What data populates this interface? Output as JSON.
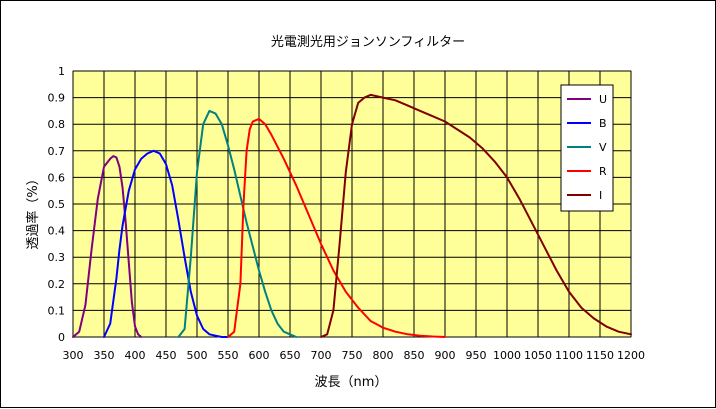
{
  "chart_data": {
    "type": "line",
    "title": "光電測光用ジョンソンフィルター",
    "xlabel": "波長（nm）",
    "ylabel": "透過率（%）",
    "xlim": [
      300,
      1200
    ],
    "ylim": [
      0,
      1
    ],
    "xticks": [
      300,
      350,
      400,
      450,
      500,
      550,
      600,
      650,
      700,
      750,
      800,
      850,
      900,
      950,
      1000,
      1050,
      1100,
      1150,
      1200
    ],
    "yticks": [
      0,
      0.1,
      0.2,
      0.3,
      0.4,
      0.5,
      0.6,
      0.7,
      0.8,
      0.9,
      1
    ],
    "xtick_labels": [
      "300",
      "350",
      "400",
      "450",
      "500",
      "550",
      "600",
      "650",
      "700",
      "750",
      "800",
      "850",
      "900",
      "950",
      "1000",
      "1050",
      "1100",
      "1150",
      "1200"
    ],
    "ytick_labels": [
      "0",
      "0.1",
      "0.2",
      "0.3",
      "0.4",
      "0.5",
      "0.6",
      "0.7",
      "0.8",
      "0.9",
      "1"
    ],
    "grid": true,
    "plot_background": "#FFFF99",
    "legend_placement": "top-right",
    "series": [
      {
        "name": "U",
        "color": "#800080",
        "x": [
          300,
          310,
          320,
          330,
          340,
          350,
          360,
          365,
          370,
          375,
          380,
          385,
          390,
          395,
          400,
          405,
          410
        ],
        "y": [
          0,
          0.02,
          0.12,
          0.33,
          0.52,
          0.64,
          0.67,
          0.68,
          0.675,
          0.64,
          0.56,
          0.43,
          0.28,
          0.13,
          0.04,
          0.01,
          0
        ]
      },
      {
        "name": "B",
        "color": "#0000FF",
        "x": [
          350,
          360,
          370,
          375,
          380,
          390,
          400,
          410,
          420,
          430,
          440,
          450,
          460,
          470,
          480,
          490,
          500,
          510,
          520,
          530,
          540,
          550
        ],
        "y": [
          0,
          0.05,
          0.22,
          0.33,
          0.42,
          0.55,
          0.63,
          0.67,
          0.69,
          0.7,
          0.69,
          0.65,
          0.57,
          0.44,
          0.3,
          0.17,
          0.08,
          0.03,
          0.01,
          0.005,
          0,
          0
        ]
      },
      {
        "name": "V",
        "color": "#008080",
        "x": [
          470,
          480,
          490,
          500,
          510,
          520,
          530,
          540,
          550,
          560,
          570,
          580,
          590,
          600,
          610,
          620,
          630,
          640,
          650,
          660
        ],
        "y": [
          0,
          0.03,
          0.3,
          0.62,
          0.8,
          0.85,
          0.84,
          0.8,
          0.72,
          0.63,
          0.53,
          0.43,
          0.34,
          0.25,
          0.17,
          0.1,
          0.05,
          0.02,
          0.01,
          0
        ]
      },
      {
        "name": "R",
        "color": "#FF0000",
        "x": [
          550,
          560,
          570,
          575,
          580,
          585,
          590,
          600,
          610,
          620,
          640,
          660,
          680,
          700,
          720,
          740,
          760,
          780,
          800,
          820,
          840,
          860,
          880,
          900
        ],
        "y": [
          0,
          0.02,
          0.2,
          0.5,
          0.7,
          0.78,
          0.81,
          0.82,
          0.8,
          0.76,
          0.67,
          0.57,
          0.46,
          0.35,
          0.25,
          0.17,
          0.11,
          0.06,
          0.035,
          0.02,
          0.01,
          0.005,
          0.002,
          0
        ]
      },
      {
        "name": "I",
        "color": "#800000",
        "x": [
          700,
          710,
          720,
          730,
          740,
          750,
          760,
          770,
          780,
          800,
          820,
          840,
          860,
          880,
          900,
          920,
          940,
          960,
          980,
          1000,
          1020,
          1040,
          1060,
          1080,
          1100,
          1120,
          1140,
          1160,
          1180,
          1200
        ],
        "y": [
          0,
          0.01,
          0.1,
          0.35,
          0.62,
          0.8,
          0.88,
          0.9,
          0.91,
          0.9,
          0.89,
          0.87,
          0.85,
          0.83,
          0.81,
          0.78,
          0.75,
          0.71,
          0.66,
          0.6,
          0.52,
          0.43,
          0.34,
          0.25,
          0.17,
          0.11,
          0.07,
          0.04,
          0.02,
          0.01
        ]
      }
    ]
  }
}
